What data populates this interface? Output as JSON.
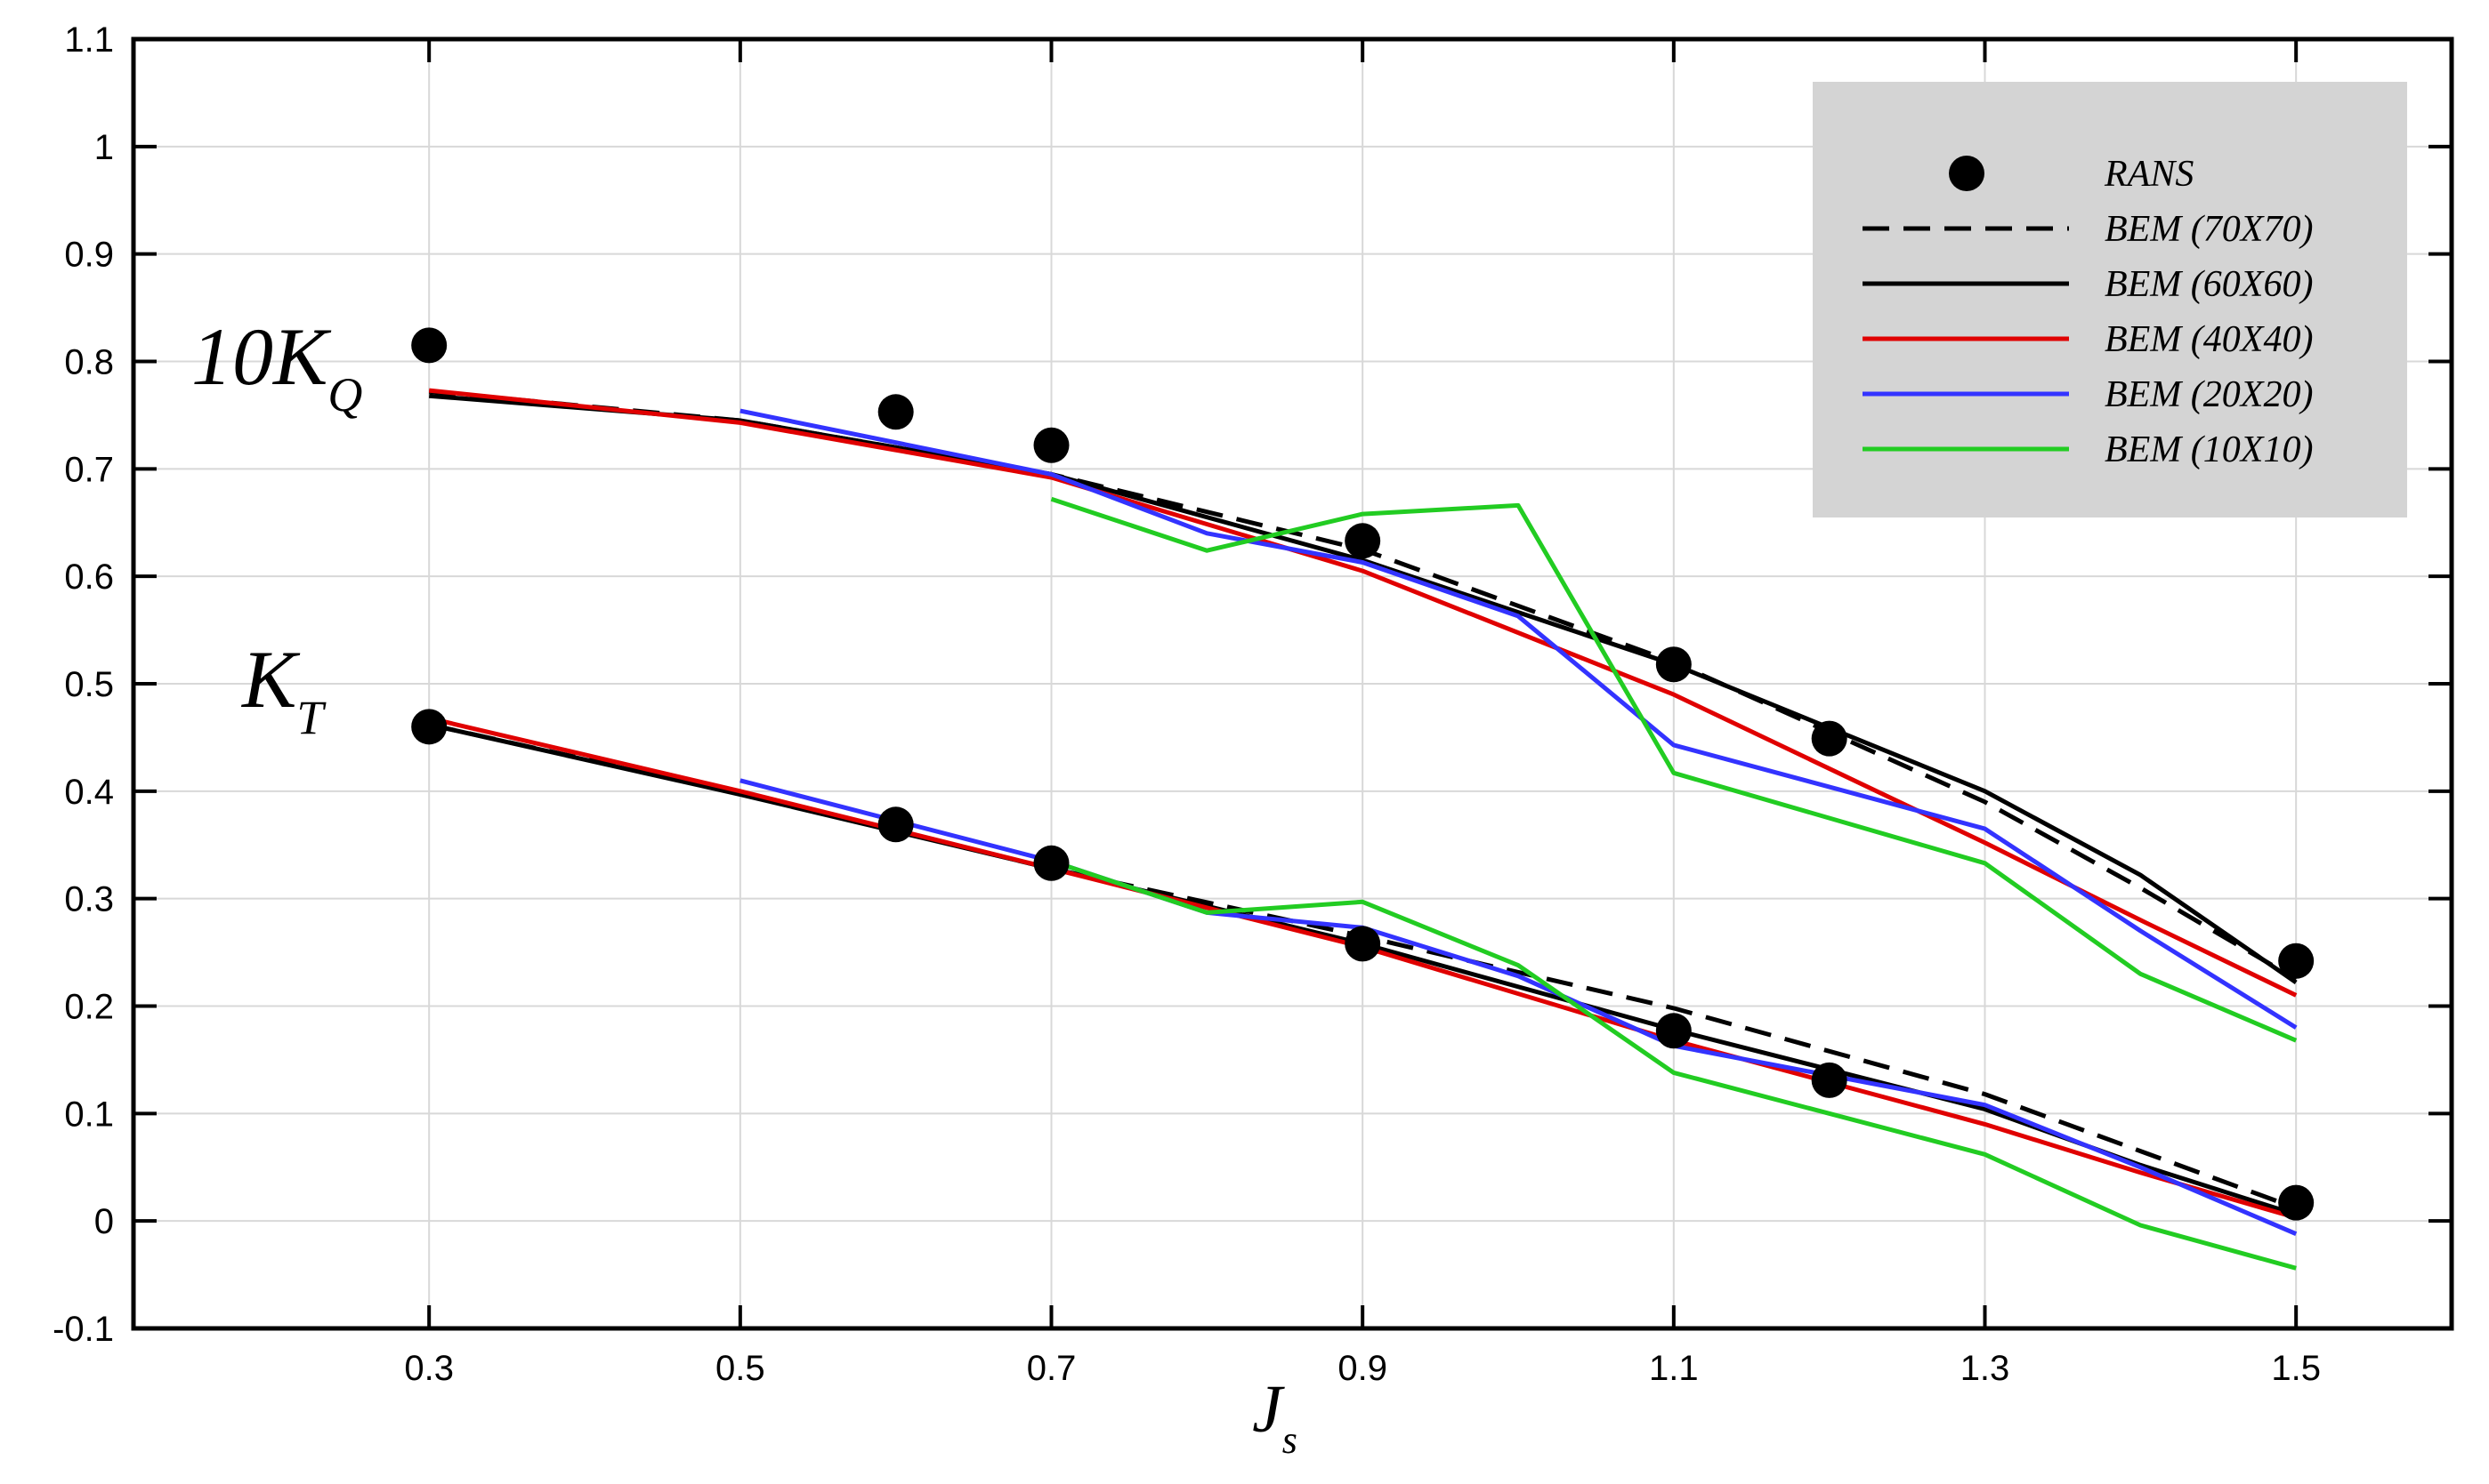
{
  "chart_data": {
    "type": "line",
    "title": "",
    "xlabel": {
      "main": "J",
      "sub": "s"
    },
    "ylabel": "",
    "xlim": [
      0.11,
      1.6
    ],
    "ylim": [
      -0.1,
      1.1
    ],
    "xticks": [
      0.3,
      0.5,
      0.7,
      0.9,
      1.1,
      1.3,
      1.5
    ],
    "xtick_labels": [
      "0.3",
      "0.5",
      "0.7",
      "0.9",
      "1.1",
      "1.3",
      "1.5"
    ],
    "yticks": [
      -0.1,
      0,
      0.1,
      0.2,
      0.3,
      0.4,
      0.5,
      0.6,
      0.7,
      0.8,
      0.9,
      1,
      1.1
    ],
    "ytick_labels": [
      "-0.1",
      "0",
      "0.1",
      "0.2",
      "0.3",
      "0.4",
      "0.5",
      "0.6",
      "0.7",
      "0.8",
      "0.9",
      "1",
      "1.1"
    ],
    "grid": true,
    "legend_position": "top-right",
    "annotations": [
      {
        "main": "10K",
        "sub": "Q",
        "near_series": "10KQ"
      },
      {
        "main": "K",
        "sub": "T",
        "near_series": "KT"
      }
    ],
    "series": [
      {
        "name": "RANS",
        "style": "marker",
        "color": "#000000",
        "group": "10KQ",
        "x": [
          0.3,
          0.6,
          0.7,
          0.9,
          1.1,
          1.2,
          1.5
        ],
        "y": [
          0.815,
          0.753,
          0.722,
          0.633,
          0.518,
          0.449,
          0.242
        ]
      },
      {
        "name": "RANS",
        "style": "marker",
        "color": "#000000",
        "group": "KT",
        "x": [
          0.3,
          0.6,
          0.7,
          0.9,
          1.1,
          1.2,
          1.5
        ],
        "y": [
          0.46,
          0.369,
          0.333,
          0.258,
          0.177,
          0.131,
          0.017
        ]
      },
      {
        "name": "BEM (70X70)",
        "style": "dashed",
        "color": "#000000",
        "group": "10KQ",
        "x": [
          0.3,
          0.5,
          0.7,
          0.9,
          1.1,
          1.3,
          1.4,
          1.5
        ],
        "y": [
          0.772,
          0.745,
          0.695,
          0.625,
          0.52,
          0.39,
          0.31,
          0.225
        ]
      },
      {
        "name": "BEM (70X70)",
        "style": "dashed",
        "color": "#000000",
        "group": "KT",
        "x": [
          0.3,
          0.5,
          0.7,
          0.9,
          1.1,
          1.3,
          1.4,
          1.5
        ],
        "y": [
          0.462,
          0.398,
          0.328,
          0.265,
          0.198,
          0.118,
          0.065,
          0.012
        ]
      },
      {
        "name": "BEM (60X60)",
        "style": "solid",
        "color": "#000000",
        "group": "10KQ",
        "x": [
          0.3,
          0.5,
          0.7,
          0.9,
          1.1,
          1.3,
          1.4,
          1.5
        ],
        "y": [
          0.768,
          0.745,
          0.695,
          0.615,
          0.518,
          0.4,
          0.322,
          0.222
        ]
      },
      {
        "name": "BEM (60X60)",
        "style": "solid",
        "color": "#000000",
        "group": "KT",
        "x": [
          0.3,
          0.5,
          0.7,
          0.9,
          1.1,
          1.3,
          1.4,
          1.5
        ],
        "y": [
          0.462,
          0.397,
          0.328,
          0.258,
          0.178,
          0.104,
          0.052,
          0.006
        ]
      },
      {
        "name": "BEM (40X40)",
        "style": "solid",
        "color": "#e00000",
        "group": "10KQ",
        "x": [
          0.3,
          0.5,
          0.7,
          0.9,
          1.1,
          1.3,
          1.4,
          1.5
        ],
        "y": [
          0.773,
          0.743,
          0.692,
          0.605,
          0.49,
          0.352,
          0.28,
          0.21
        ]
      },
      {
        "name": "BEM (40X40)",
        "style": "solid",
        "color": "#e00000",
        "group": "KT",
        "x": [
          0.3,
          0.5,
          0.7,
          0.9,
          1.1,
          1.3,
          1.4,
          1.5
        ],
        "y": [
          0.468,
          0.4,
          0.328,
          0.255,
          0.168,
          0.09,
          0.045,
          0.003
        ]
      },
      {
        "name": "BEM (20X20)",
        "style": "solid",
        "color": "#3333ff",
        "group": "10KQ",
        "x": [
          0.5,
          0.7,
          0.8,
          0.9,
          1.0,
          1.1,
          1.3,
          1.4,
          1.5
        ],
        "y": [
          0.754,
          0.695,
          0.64,
          0.613,
          0.563,
          0.443,
          0.365,
          0.27,
          0.18
        ]
      },
      {
        "name": "BEM (20X20)",
        "style": "solid",
        "color": "#3333ff",
        "group": "KT",
        "x": [
          0.5,
          0.7,
          0.8,
          0.9,
          1.0,
          1.1,
          1.3,
          1.4,
          1.5
        ],
        "y": [
          0.41,
          0.335,
          0.287,
          0.273,
          0.228,
          0.163,
          0.108,
          0.05,
          -0.012
        ]
      },
      {
        "name": "BEM (10X10)",
        "style": "solid",
        "color": "#22cc22",
        "group": "10KQ",
        "x": [
          0.7,
          0.8,
          0.9,
          1.0,
          1.1,
          1.3,
          1.4,
          1.5
        ],
        "y": [
          0.672,
          0.624,
          0.658,
          0.666,
          0.417,
          0.333,
          0.23,
          0.168
        ]
      },
      {
        "name": "BEM (10X10)",
        "style": "solid",
        "color": "#22cc22",
        "group": "KT",
        "x": [
          0.7,
          0.8,
          0.9,
          1.0,
          1.1,
          1.3,
          1.4,
          1.5
        ],
        "y": [
          0.335,
          0.287,
          0.297,
          0.238,
          0.138,
          0.062,
          -0.004,
          -0.044
        ]
      }
    ],
    "legend": [
      {
        "label": "RANS",
        "style": "marker",
        "color": "#000000"
      },
      {
        "label": "BEM (70X70)",
        "style": "dashed",
        "color": "#000000"
      },
      {
        "label": "BEM (60X60)",
        "style": "solid",
        "color": "#000000"
      },
      {
        "label": "BEM (40X40)",
        "style": "solid",
        "color": "#e00000"
      },
      {
        "label": "BEM (20X20)",
        "style": "solid",
        "color": "#3333ff"
      },
      {
        "label": "BEM (10X10)",
        "style": "solid",
        "color": "#22cc22"
      }
    ],
    "legend_background": "#d4d4d4",
    "grid_color": "#d8d8d8"
  }
}
